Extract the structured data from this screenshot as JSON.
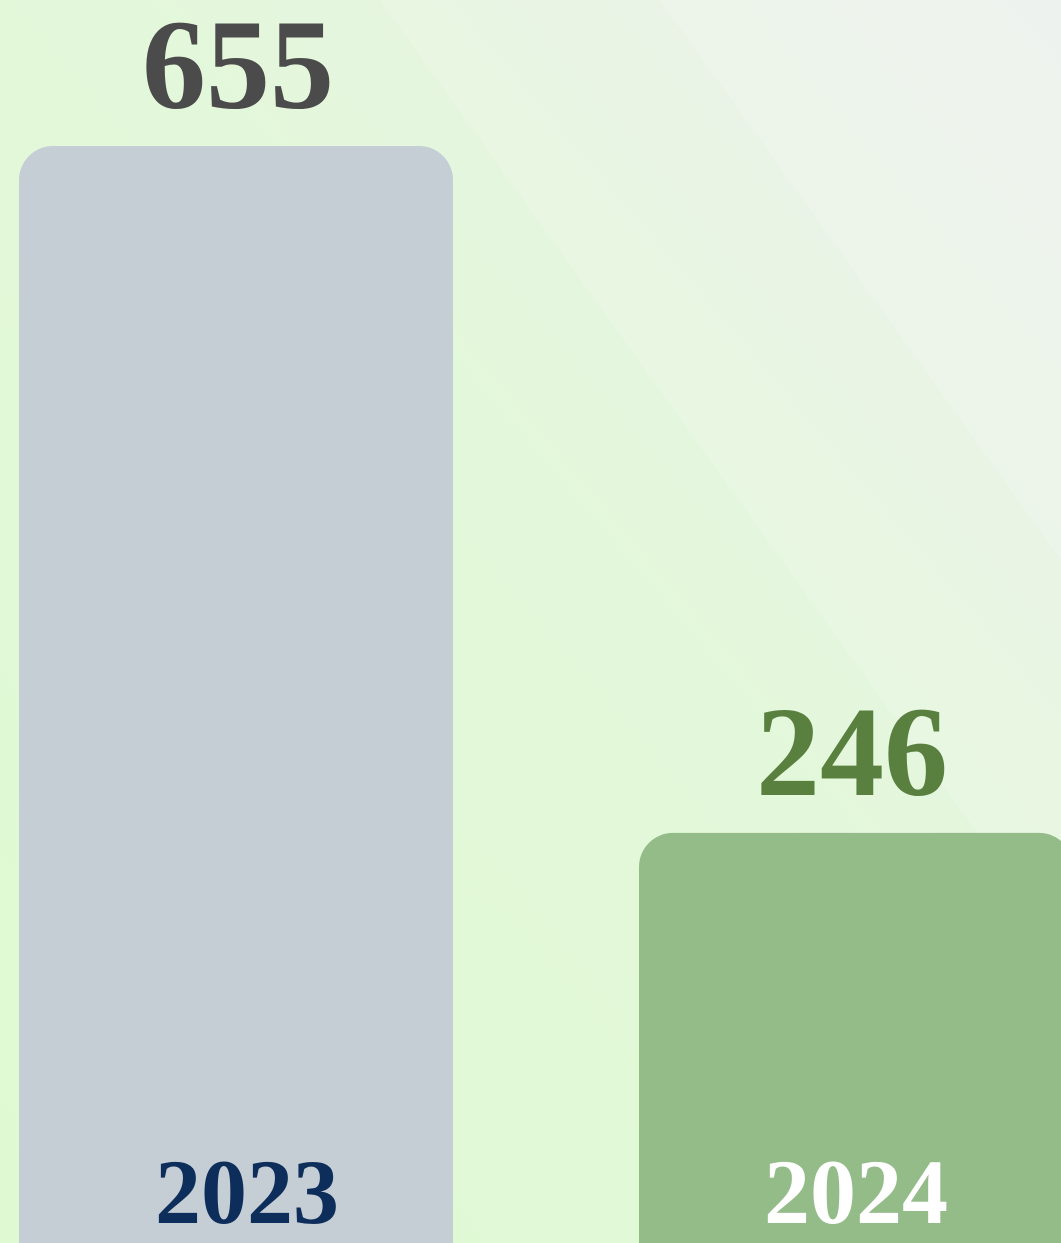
{
  "chart_data": {
    "type": "bar",
    "categories": [
      "2023",
      "2024"
    ],
    "values": [
      655,
      246
    ],
    "colors": [
      "#c5cdd5",
      "#94bc89"
    ]
  }
}
